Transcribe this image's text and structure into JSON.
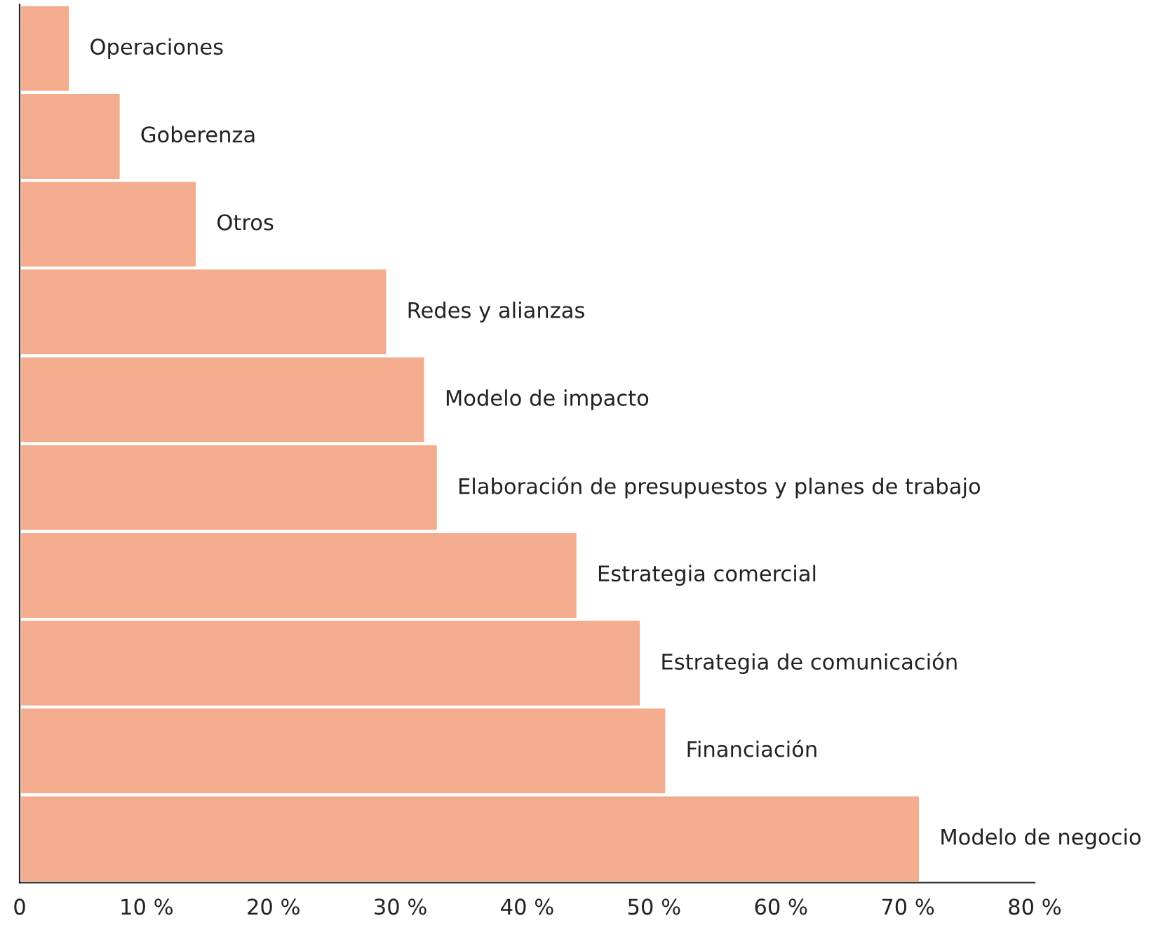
{
  "chart_data": {
    "type": "bar",
    "orientation": "horizontal",
    "categories": [
      "Operaciones",
      "Goberenza",
      "Otros",
      "Redes y alianzas",
      "Modelo de impacto",
      "Elaboración de presupuestos y planes de trabajo",
      "Estrategia comercial",
      "Estrategia de comunicación",
      "Financiación",
      "Modelo de negocio"
    ],
    "values": [
      4,
      8,
      14,
      29,
      32,
      33,
      44,
      49,
      51,
      71
    ],
    "color": "#f4ac8e",
    "xlim": [
      0,
      80
    ],
    "xticks": [
      0,
      {
        "value": 10,
        "label": "10 %"
      },
      {
        "value": 20,
        "label": "20 %"
      },
      {
        "value": 30,
        "label": "30 %"
      },
      {
        "value": 40,
        "label": "40 %"
      },
      {
        "value": 50,
        "label": "50 %"
      },
      {
        "value": 60,
        "label": "60 %"
      },
      {
        "value": 70,
        "label": "70 %"
      },
      {
        "value": 80,
        "label": "80 %"
      }
    ],
    "tick_labels": "x",
    "grid": false,
    "legend": false
  }
}
